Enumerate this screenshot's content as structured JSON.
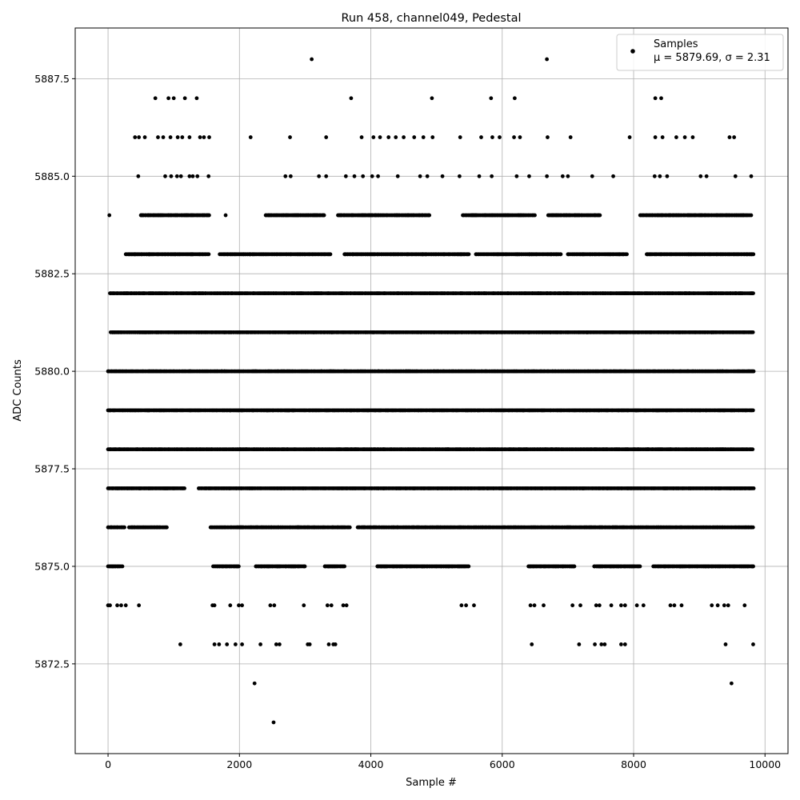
{
  "chart_data": {
    "type": "scatter",
    "title": "Run 458, channel049, Pedestal",
    "xlabel": "Sample #",
    "ylabel": "ADC Counts",
    "xlim": [
      -500,
      10350
    ],
    "ylim": [
      5870.2,
      5888.8
    ],
    "xticks": [
      0,
      2000,
      4000,
      6000,
      8000,
      10000
    ],
    "xtick_labels": [
      "0",
      "2000",
      "4000",
      "6000",
      "8000",
      "10000"
    ],
    "yticks": [
      5872.5,
      5875.0,
      5877.5,
      5880.0,
      5882.5,
      5885.0,
      5887.5
    ],
    "ytick_labels": [
      "5872.5",
      "5875.0",
      "5877.5",
      "5880.0",
      "5882.5",
      "5885.0",
      "5887.5"
    ],
    "grid": true,
    "legend_position": "top-right",
    "series": [
      {
        "name": "Samples",
        "stats_label": "μ = 5879.69, σ = 2.31",
        "color": "#000000",
        "bands": [
          {
            "y": 5882,
            "x_ranges": [
              [
                30,
                9830
              ]
            ]
          },
          {
            "y": 5881,
            "x_ranges": [
              [
                40,
                9830
              ]
            ]
          },
          {
            "y": 5880,
            "x_ranges": [
              [
                0,
                9830
              ]
            ]
          },
          {
            "y": 5879,
            "x_ranges": [
              [
                0,
                9830
              ]
            ]
          },
          {
            "y": 5878,
            "x_ranges": [
              [
                0,
                9830
              ]
            ]
          },
          {
            "y": 5877,
            "x_ranges": [
              [
                0,
                1180
              ],
              [
                1380,
                9830
              ]
            ]
          },
          {
            "y": 5876,
            "x_ranges": [
              [
                0,
                250
              ],
              [
                320,
                900
              ],
              [
                1560,
                3700
              ],
              [
                3800,
                9830
              ]
            ]
          },
          {
            "y": 5883,
            "x_ranges": [
              [
                270,
                1550
              ],
              [
                1700,
                3400
              ],
              [
                3600,
                5500
              ],
              [
                5600,
                6900
              ],
              [
                7000,
                7900
              ],
              [
                8200,
                9830
              ]
            ]
          },
          {
            "y": 5884,
            "x_ranges": [
              [
                500,
                1550
              ],
              [
                2400,
                3300
              ],
              [
                3500,
                4900
              ],
              [
                5400,
                6500
              ],
              [
                6700,
                7500
              ],
              [
                8100,
                9800
              ]
            ]
          },
          {
            "y": 5875,
            "x_ranges": [
              [
                0,
                220
              ],
              [
                1600,
                2000
              ],
              [
                2250,
                3000
              ],
              [
                3300,
                3600
              ],
              [
                4100,
                5500
              ],
              [
                6400,
                7100
              ],
              [
                7400,
                8100
              ],
              [
                8300,
                9830
              ]
            ]
          }
        ],
        "points": [
          {
            "x": 3100,
            "y": 5888
          },
          {
            "x": 6680,
            "y": 5888
          },
          {
            "x": 720,
            "y": 5887
          },
          {
            "x": 920,
            "y": 5887
          },
          {
            "x": 1000,
            "y": 5887
          },
          {
            "x": 1170,
            "y": 5887
          },
          {
            "x": 1350,
            "y": 5887
          },
          {
            "x": 3700,
            "y": 5887
          },
          {
            "x": 4930,
            "y": 5887
          },
          {
            "x": 5830,
            "y": 5887
          },
          {
            "x": 6190,
            "y": 5887
          },
          {
            "x": 8330,
            "y": 5887
          },
          {
            "x": 8420,
            "y": 5887
          },
          {
            "x": 410,
            "y": 5886
          },
          {
            "x": 470,
            "y": 5886
          },
          {
            "x": 560,
            "y": 5886
          },
          {
            "x": 760,
            "y": 5886
          },
          {
            "x": 840,
            "y": 5886
          },
          {
            "x": 950,
            "y": 5886
          },
          {
            "x": 1060,
            "y": 5886
          },
          {
            "x": 1130,
            "y": 5886
          },
          {
            "x": 1240,
            "y": 5886
          },
          {
            "x": 1400,
            "y": 5886
          },
          {
            "x": 1460,
            "y": 5886
          },
          {
            "x": 1540,
            "y": 5886
          },
          {
            "x": 2170,
            "y": 5886
          },
          {
            "x": 2770,
            "y": 5886
          },
          {
            "x": 3320,
            "y": 5886
          },
          {
            "x": 3860,
            "y": 5886
          },
          {
            "x": 4040,
            "y": 5886
          },
          {
            "x": 4140,
            "y": 5886
          },
          {
            "x": 4270,
            "y": 5886
          },
          {
            "x": 4380,
            "y": 5886
          },
          {
            "x": 4500,
            "y": 5886
          },
          {
            "x": 4660,
            "y": 5886
          },
          {
            "x": 4800,
            "y": 5886
          },
          {
            "x": 4940,
            "y": 5886
          },
          {
            "x": 5360,
            "y": 5886
          },
          {
            "x": 5680,
            "y": 5886
          },
          {
            "x": 5850,
            "y": 5886
          },
          {
            "x": 5960,
            "y": 5886
          },
          {
            "x": 6180,
            "y": 5886
          },
          {
            "x": 6270,
            "y": 5886
          },
          {
            "x": 6690,
            "y": 5886
          },
          {
            "x": 7040,
            "y": 5886
          },
          {
            "x": 7940,
            "y": 5886
          },
          {
            "x": 8330,
            "y": 5886
          },
          {
            "x": 8440,
            "y": 5886
          },
          {
            "x": 8650,
            "y": 5886
          },
          {
            "x": 8780,
            "y": 5886
          },
          {
            "x": 8900,
            "y": 5886
          },
          {
            "x": 9460,
            "y": 5886
          },
          {
            "x": 9530,
            "y": 5886
          },
          {
            "x": 460,
            "y": 5885
          },
          {
            "x": 870,
            "y": 5885
          },
          {
            "x": 960,
            "y": 5885
          },
          {
            "x": 1050,
            "y": 5885
          },
          {
            "x": 1110,
            "y": 5885
          },
          {
            "x": 1240,
            "y": 5885
          },
          {
            "x": 1290,
            "y": 5885
          },
          {
            "x": 1360,
            "y": 5885
          },
          {
            "x": 1530,
            "y": 5885
          },
          {
            "x": 2700,
            "y": 5885
          },
          {
            "x": 2780,
            "y": 5885
          },
          {
            "x": 3210,
            "y": 5885
          },
          {
            "x": 3320,
            "y": 5885
          },
          {
            "x": 3620,
            "y": 5885
          },
          {
            "x": 3750,
            "y": 5885
          },
          {
            "x": 3880,
            "y": 5885
          },
          {
            "x": 4020,
            "y": 5885
          },
          {
            "x": 4110,
            "y": 5885
          },
          {
            "x": 4410,
            "y": 5885
          },
          {
            "x": 4750,
            "y": 5885
          },
          {
            "x": 4860,
            "y": 5885
          },
          {
            "x": 5090,
            "y": 5885
          },
          {
            "x": 5350,
            "y": 5885
          },
          {
            "x": 5650,
            "y": 5885
          },
          {
            "x": 5840,
            "y": 5885
          },
          {
            "x": 6220,
            "y": 5885
          },
          {
            "x": 6410,
            "y": 5885
          },
          {
            "x": 6680,
            "y": 5885
          },
          {
            "x": 6920,
            "y": 5885
          },
          {
            "x": 7000,
            "y": 5885
          },
          {
            "x": 7370,
            "y": 5885
          },
          {
            "x": 7690,
            "y": 5885
          },
          {
            "x": 8320,
            "y": 5885
          },
          {
            "x": 8400,
            "y": 5885
          },
          {
            "x": 8510,
            "y": 5885
          },
          {
            "x": 9020,
            "y": 5885
          },
          {
            "x": 9110,
            "y": 5885
          },
          {
            "x": 9550,
            "y": 5885
          },
          {
            "x": 9790,
            "y": 5885
          },
          {
            "x": 20,
            "y": 5884
          },
          {
            "x": 1790,
            "y": 5884
          },
          {
            "x": 0,
            "y": 5874
          },
          {
            "x": 30,
            "y": 5874
          },
          {
            "x": 140,
            "y": 5874
          },
          {
            "x": 200,
            "y": 5874
          },
          {
            "x": 270,
            "y": 5874
          },
          {
            "x": 470,
            "y": 5874
          },
          {
            "x": 1590,
            "y": 5874
          },
          {
            "x": 1620,
            "y": 5874
          },
          {
            "x": 1860,
            "y": 5874
          },
          {
            "x": 1990,
            "y": 5874
          },
          {
            "x": 2040,
            "y": 5874
          },
          {
            "x": 2470,
            "y": 5874
          },
          {
            "x": 2530,
            "y": 5874
          },
          {
            "x": 2980,
            "y": 5874
          },
          {
            "x": 3340,
            "y": 5874
          },
          {
            "x": 3400,
            "y": 5874
          },
          {
            "x": 3580,
            "y": 5874
          },
          {
            "x": 3630,
            "y": 5874
          },
          {
            "x": 5380,
            "y": 5874
          },
          {
            "x": 5450,
            "y": 5874
          },
          {
            "x": 5570,
            "y": 5874
          },
          {
            "x": 6430,
            "y": 5874
          },
          {
            "x": 6490,
            "y": 5874
          },
          {
            "x": 6630,
            "y": 5874
          },
          {
            "x": 7070,
            "y": 5874
          },
          {
            "x": 7190,
            "y": 5874
          },
          {
            "x": 7430,
            "y": 5874
          },
          {
            "x": 7480,
            "y": 5874
          },
          {
            "x": 7660,
            "y": 5874
          },
          {
            "x": 7810,
            "y": 5874
          },
          {
            "x": 7870,
            "y": 5874
          },
          {
            "x": 8050,
            "y": 5874
          },
          {
            "x": 8150,
            "y": 5874
          },
          {
            "x": 8560,
            "y": 5874
          },
          {
            "x": 8620,
            "y": 5874
          },
          {
            "x": 8730,
            "y": 5874
          },
          {
            "x": 9190,
            "y": 5874
          },
          {
            "x": 9280,
            "y": 5874
          },
          {
            "x": 9380,
            "y": 5874
          },
          {
            "x": 9440,
            "y": 5874
          },
          {
            "x": 9690,
            "y": 5874
          },
          {
            "x": 1100,
            "y": 5873
          },
          {
            "x": 1620,
            "y": 5873
          },
          {
            "x": 1690,
            "y": 5873
          },
          {
            "x": 1810,
            "y": 5873
          },
          {
            "x": 1940,
            "y": 5873
          },
          {
            "x": 2040,
            "y": 5873
          },
          {
            "x": 2320,
            "y": 5873
          },
          {
            "x": 2560,
            "y": 5873
          },
          {
            "x": 2610,
            "y": 5873
          },
          {
            "x": 3040,
            "y": 5873
          },
          {
            "x": 3070,
            "y": 5873
          },
          {
            "x": 3360,
            "y": 5873
          },
          {
            "x": 3430,
            "y": 5873
          },
          {
            "x": 3460,
            "y": 5873
          },
          {
            "x": 6450,
            "y": 5873
          },
          {
            "x": 7170,
            "y": 5873
          },
          {
            "x": 7410,
            "y": 5873
          },
          {
            "x": 7510,
            "y": 5873
          },
          {
            "x": 7560,
            "y": 5873
          },
          {
            "x": 7810,
            "y": 5873
          },
          {
            "x": 7870,
            "y": 5873
          },
          {
            "x": 9400,
            "y": 5873
          },
          {
            "x": 9820,
            "y": 5873
          },
          {
            "x": 2230,
            "y": 5872
          },
          {
            "x": 9490,
            "y": 5872
          },
          {
            "x": 2520,
            "y": 5871
          }
        ]
      }
    ]
  }
}
